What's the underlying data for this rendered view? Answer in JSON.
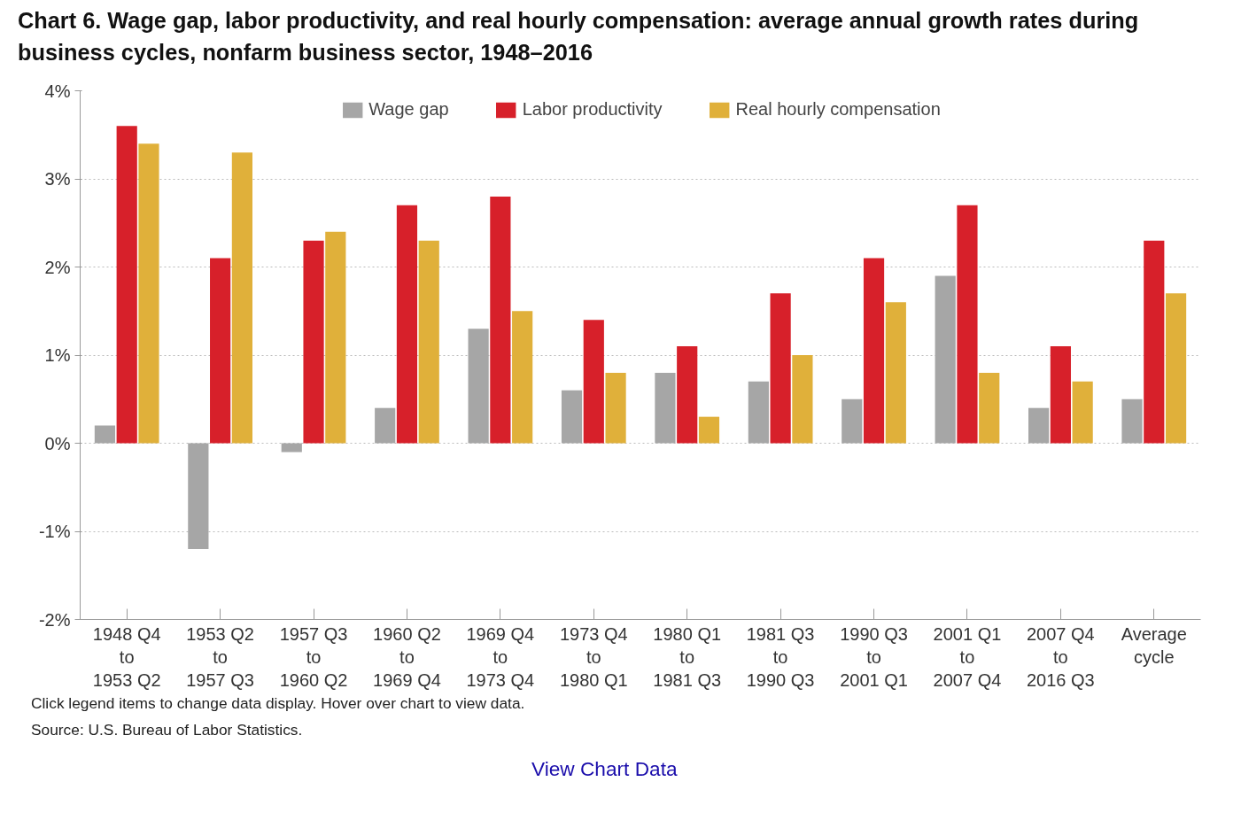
{
  "chart_data": {
    "type": "bar",
    "title": "Chart 6. Wage gap, labor productivity, and real hourly compensation: average annual growth rates during business cycles, nonfarm business sector, 1948–2016",
    "categories": [
      "1948 Q4\nto\n1953 Q2",
      "1953 Q2\nto\n1957 Q3",
      "1957 Q3\nto\n1960 Q2",
      "1960 Q2\nto\n1969 Q4",
      "1969 Q4\nto\n1973 Q4",
      "1973 Q4\nto\n1980 Q1",
      "1980 Q1\nto\n1981 Q3",
      "1981 Q3\nto\n1990 Q3",
      "1990 Q3\nto\n2001 Q1",
      "2001 Q1\nto\n2007 Q4",
      "2007 Q4\nto\n2016 Q3",
      "Average\ncycle"
    ],
    "series": [
      {
        "name": "Wage gap",
        "color": "#a6a6a6",
        "values": [
          0.2,
          -1.2,
          -0.1,
          0.4,
          1.3,
          0.6,
          0.8,
          0.7,
          0.5,
          1.9,
          0.4,
          0.5
        ]
      },
      {
        "name": "Labor productivity",
        "color": "#d7202a",
        "values": [
          3.6,
          2.1,
          2.3,
          2.7,
          2.8,
          1.4,
          1.1,
          1.7,
          2.1,
          2.7,
          1.1,
          2.3
        ]
      },
      {
        "name": "Real hourly compensation",
        "color": "#e0b03a",
        "values": [
          3.4,
          3.3,
          2.4,
          2.3,
          1.5,
          0.8,
          0.3,
          1.0,
          1.6,
          0.8,
          0.7,
          1.7
        ]
      }
    ],
    "ylim": [
      -2,
      4
    ],
    "yticks": [
      {
        "value": -2,
        "label": "-2%"
      },
      {
        "value": -1,
        "label": "-1%"
      },
      {
        "value": 0,
        "label": "0%"
      },
      {
        "value": 1,
        "label": "1%"
      },
      {
        "value": 2,
        "label": "2%"
      },
      {
        "value": 3,
        "label": "3%"
      },
      {
        "value": 4,
        "label": "4%"
      }
    ],
    "grid": "y",
    "legend": "top",
    "annotations": [
      "Click legend items to change data display. Hover over chart to view data.",
      "Source: U.S. Bureau of Labor Statistics.",
      "View Chart Data"
    ]
  }
}
